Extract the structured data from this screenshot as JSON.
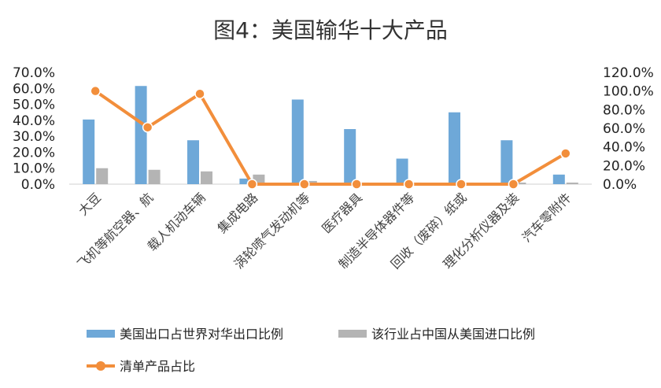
{
  "chart_data": {
    "type": "bar",
    "title": "图4：美国输华十大产品",
    "categories": [
      "大豆",
      "飞机等航空器、航",
      "载人机动车辆",
      "集成电路",
      "涡轮喷气发动机等",
      "医疗器具",
      "制造半导体器件等",
      "回收（废碎）纸或",
      "理化分析仪器及装",
      "汽车零附件"
    ],
    "series": [
      {
        "name": "美国出口占世界对华出口比例",
        "axis": "left",
        "type": "bar",
        "color": "#6EA8D8",
        "values": [
          40.5,
          61.5,
          27.5,
          3.5,
          53.0,
          34.5,
          16.0,
          45.0,
          27.5,
          6.0
        ]
      },
      {
        "name": "该行业占中国从美国进口比例",
        "axis": "left",
        "type": "bar",
        "color": "#B4B4B4",
        "values": [
          10.0,
          9.0,
          8.0,
          6.0,
          2.0,
          1.0,
          1.0,
          1.0,
          1.0,
          1.0
        ]
      },
      {
        "name": "清单产品占比",
        "axis": "right",
        "type": "line",
        "color": "#F28E3B",
        "values": [
          100.0,
          61.0,
          97.0,
          0.0,
          0.0,
          0.0,
          0.0,
          0.0,
          0.0,
          33.0
        ]
      }
    ],
    "y_left": {
      "min": 0,
      "max": 70,
      "step": 10,
      "ticks": [
        "0.0%",
        "10.0%",
        "20.0%",
        "30.0%",
        "40.0%",
        "50.0%",
        "60.0%",
        "70.0%"
      ]
    },
    "y_right": {
      "min": 0,
      "max": 120,
      "step": 20,
      "ticks": [
        "0.0%",
        "20.0%",
        "40.0%",
        "60.0%",
        "80.0%",
        "100.0%",
        "120.0%"
      ]
    },
    "grid": false,
    "legend_position": "bottom"
  }
}
